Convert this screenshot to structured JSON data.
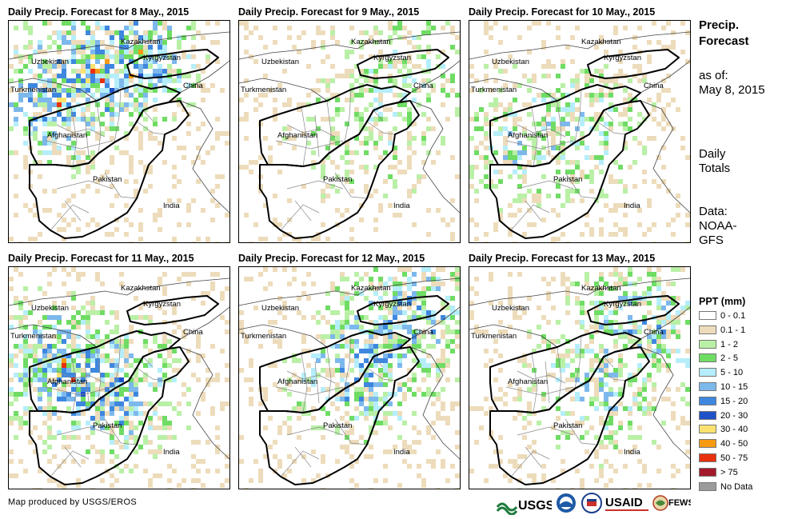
{
  "panels": [
    {
      "title": "Daily Precip. Forecast for 8 May., 2015",
      "intensity": 0.85,
      "focus": "north"
    },
    {
      "title": "Daily Precip. Forecast for 9 May., 2015",
      "intensity": 0.35,
      "focus": "east"
    },
    {
      "title": "Daily Precip. Forecast for 10 May., 2015",
      "intensity": 0.45,
      "focus": "center"
    },
    {
      "title": "Daily Precip. Forecast for 11 May., 2015",
      "intensity": 0.8,
      "focus": "west"
    },
    {
      "title": "Daily Precip. Forecast for 12 May., 2015",
      "intensity": 0.7,
      "focus": "east"
    },
    {
      "title": "Daily Precip. Forecast for 13 May., 2015",
      "intensity": 0.55,
      "focus": "northeast"
    }
  ],
  "country_labels": [
    "Kazakhstan",
    "Uzbekistan",
    "Kyrgyzstan",
    "Turkmenistan",
    "China",
    "Afghanistan",
    "Pakistan",
    "India"
  ],
  "side": {
    "title_line1": "Precip.",
    "title_line2": "Forecast",
    "asof": "as of:",
    "date": "May 8, 2015",
    "totals_line1": "Daily",
    "totals_line2": "Totals",
    "source_line1": "Data:",
    "source_line2": "NOAA-",
    "source_line3": "GFS"
  },
  "legend": {
    "title": "PPT (mm)",
    "items": [
      {
        "label": "0 - 0.1",
        "color": "#ffffff"
      },
      {
        "label": "0.1 - 1",
        "color": "#eddcbb"
      },
      {
        "label": "1 - 2",
        "color": "#b9f0a6"
      },
      {
        "label": "2 - 5",
        "color": "#6fdc64"
      },
      {
        "label": "5 - 10",
        "color": "#b5eefa"
      },
      {
        "label": "10 - 15",
        "color": "#7db8ec"
      },
      {
        "label": "15 - 20",
        "color": "#3e87df"
      },
      {
        "label": "20 - 30",
        "color": "#1f52c8"
      },
      {
        "label": "30 - 40",
        "color": "#fbe26f"
      },
      {
        "label": "40 - 50",
        "color": "#f69a12"
      },
      {
        "label": "50 - 75",
        "color": "#e8300d"
      },
      {
        "label": "> 75",
        "color": "#a3182a"
      },
      {
        "label": "No Data",
        "color": "#9b9b9b"
      }
    ]
  },
  "credit": "Map produced by USGS/EROS",
  "logos": {
    "usgs": "USGS",
    "usaid": "USAID",
    "fewsnet": "FEWS NET"
  }
}
